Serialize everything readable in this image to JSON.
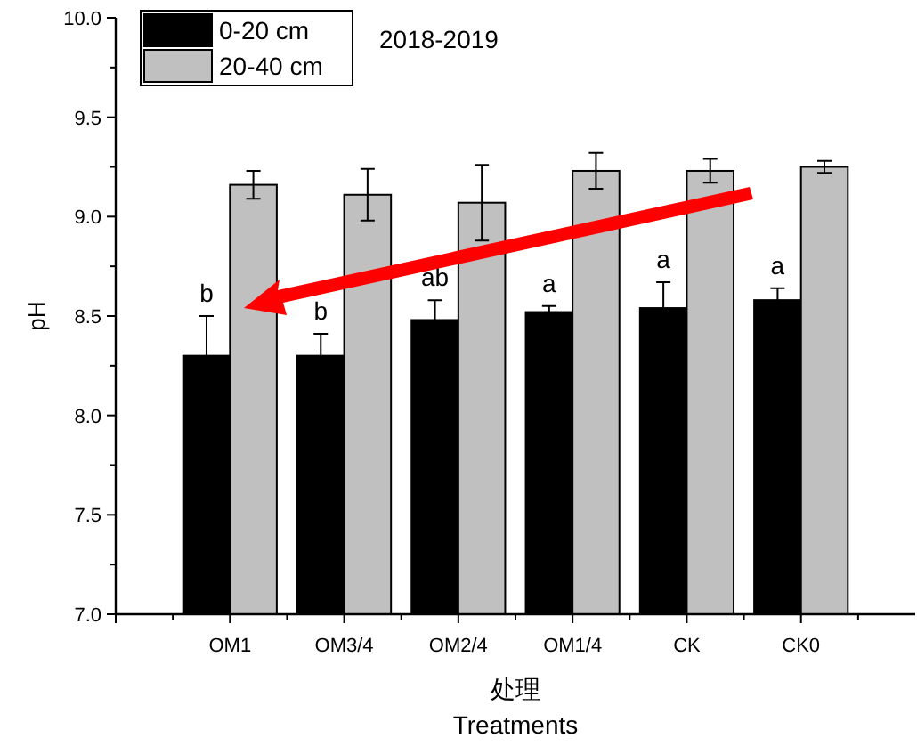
{
  "chart_data": {
    "type": "bar",
    "title": "2018-2019",
    "xlabel": "处理\nTreatments",
    "ylabel": "pH",
    "categories": [
      "OM1",
      "OM3/4",
      "OM2/4",
      "OM1/4",
      "CK",
      "CK0"
    ],
    "series": [
      {
        "name": "0-20 cm",
        "color": "#000000",
        "values": [
          8.3,
          8.3,
          8.48,
          8.52,
          8.54,
          8.58
        ],
        "errors": [
          0.2,
          0.11,
          0.1,
          0.03,
          0.13,
          0.06
        ]
      },
      {
        "name": "20-40 cm",
        "color": "#c0c0c0",
        "values": [
          9.16,
          9.11,
          9.07,
          9.23,
          9.23,
          9.25
        ],
        "errors": [
          0.07,
          0.13,
          0.19,
          0.09,
          0.06,
          0.03
        ]
      }
    ],
    "ylim": [
      7,
      10
    ],
    "yticks": [
      {
        "value": 7,
        "label": "7.0"
      },
      {
        "value": 7.5,
        "label": "7.5"
      },
      {
        "value": 8,
        "label": "8.0"
      },
      {
        "value": 8.5,
        "label": "8.5"
      },
      {
        "value": 9,
        "label": "9.0"
      },
      {
        "value": 9.5,
        "label": "9.5"
      },
      {
        "value": 10,
        "label": "10.0"
      }
    ],
    "legend": "top left",
    "grid": false,
    "annotations": [
      {
        "text": "b",
        "x": "OM1",
        "y": 8.5
      },
      {
        "text": "b",
        "x": "OM3/4",
        "y": 8.41
      },
      {
        "text": "ab",
        "x": "OM2/4",
        "y": 8.58
      },
      {
        "text": "a",
        "x": "OM1/4",
        "y": 8.55
      },
      {
        "text": "a",
        "x": "CK",
        "y": 8.67
      },
      {
        "text": "a",
        "x": "CK0",
        "y": 8.64
      }
    ]
  }
}
